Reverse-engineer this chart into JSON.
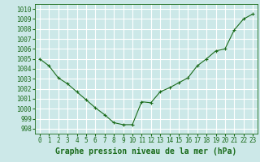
{
  "x": [
    0,
    1,
    2,
    3,
    4,
    5,
    6,
    7,
    8,
    9,
    10,
    11,
    12,
    13,
    14,
    15,
    16,
    17,
    18,
    19,
    20,
    21,
    22,
    23
  ],
  "y": [
    1005.0,
    1004.3,
    1003.1,
    1002.5,
    1001.7,
    1000.9,
    1000.1,
    999.4,
    998.6,
    998.4,
    998.4,
    1000.7,
    1000.6,
    1001.7,
    1002.1,
    1002.6,
    1003.1,
    1004.3,
    1005.0,
    1005.8,
    1006.0,
    1007.9,
    1009.0,
    1009.5
  ],
  "line_color": "#1a6b1a",
  "marker": "+",
  "marker_color": "#1a6b1a",
  "bg_color": "#cce8e8",
  "grid_color": "#ffffff",
  "xlabel": "Graphe pression niveau de la mer (hPa)",
  "xlabel_color": "#1a6b1a",
  "tick_color": "#1a6b1a",
  "ylim": [
    997.5,
    1010.5
  ],
  "yticks": [
    998,
    999,
    1000,
    1001,
    1002,
    1003,
    1004,
    1005,
    1006,
    1007,
    1008,
    1009,
    1010
  ],
  "xticks": [
    0,
    1,
    2,
    3,
    4,
    5,
    6,
    7,
    8,
    9,
    10,
    11,
    12,
    13,
    14,
    15,
    16,
    17,
    18,
    19,
    20,
    21,
    22,
    23
  ],
  "tick_fontsize": 5.5,
  "xlabel_fontsize": 7.0,
  "linewidth": 0.8,
  "markersize": 3.5
}
